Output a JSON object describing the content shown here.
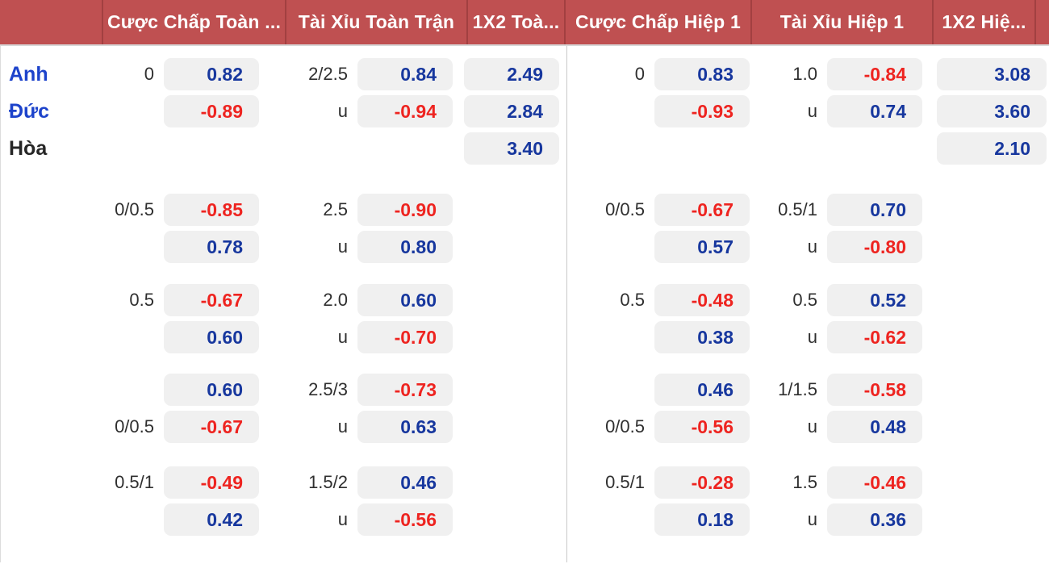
{
  "header": {
    "columns": [
      "",
      "Cược Chấp Toàn ...",
      "Tài Xỉu Toàn Trận",
      "1X2 Toà...",
      "Cược Chấp Hiệp 1",
      "Tài Xỉu Hiệp 1",
      "1X2 Hiệ..."
    ]
  },
  "colors": {
    "header_bg": "#bf5051",
    "header_divider": "#a24041",
    "pill_bg": "#f0f0f0",
    "odds_positive_blue": "#17379e",
    "odds_negative_red": "#ee2420",
    "team_blue": "#1d43cb",
    "team_dark": "#262626"
  },
  "teams": [
    {
      "label": "Anh",
      "style": "blue"
    },
    {
      "label": "Đức",
      "style": "blue"
    },
    {
      "label": "Hòa",
      "style": "dark"
    }
  ],
  "halves": [
    {
      "name": "full-match",
      "blocks": [
        {
          "rows": [
            {
              "hcp": "0",
              "hcp_odds": "0.82",
              "ou": "2/2.5",
              "ou_odds": "0.84",
              "x12": "2.49"
            },
            {
              "hcp": "",
              "hcp_odds": "-0.89",
              "ou": "u",
              "ou_odds": "-0.94",
              "x12": "2.84"
            },
            {
              "hcp": "",
              "hcp_odds": "",
              "ou": "",
              "ou_odds": "",
              "x12": "3.40"
            }
          ]
        },
        {
          "rows": [
            {
              "hcp": "0/0.5",
              "hcp_odds": "-0.85",
              "ou": "2.5",
              "ou_odds": "-0.90",
              "x12": ""
            },
            {
              "hcp": "",
              "hcp_odds": "0.78",
              "ou": "u",
              "ou_odds": "0.80",
              "x12": ""
            }
          ]
        },
        {
          "rows": [
            {
              "hcp": "0.5",
              "hcp_odds": "-0.67",
              "ou": "2.0",
              "ou_odds": "0.60",
              "x12": ""
            },
            {
              "hcp": "",
              "hcp_odds": "0.60",
              "ou": "u",
              "ou_odds": "-0.70",
              "x12": ""
            }
          ]
        },
        {
          "rows": [
            {
              "hcp": "",
              "hcp_odds": "0.60",
              "ou": "2.5/3",
              "ou_odds": "-0.73",
              "x12": ""
            },
            {
              "hcp": "0/0.5",
              "hcp_odds": "-0.67",
              "ou": "u",
              "ou_odds": "0.63",
              "x12": ""
            }
          ]
        },
        {
          "rows": [
            {
              "hcp": "0.5/1",
              "hcp_odds": "-0.49",
              "ou": "1.5/2",
              "ou_odds": "0.46",
              "x12": ""
            },
            {
              "hcp": "",
              "hcp_odds": "0.42",
              "ou": "u",
              "ou_odds": "-0.56",
              "x12": ""
            }
          ]
        }
      ]
    },
    {
      "name": "first-half",
      "blocks": [
        {
          "rows": [
            {
              "hcp": "0",
              "hcp_odds": "0.83",
              "ou": "1.0",
              "ou_odds": "-0.84",
              "x12": "3.08"
            },
            {
              "hcp": "",
              "hcp_odds": "-0.93",
              "ou": "u",
              "ou_odds": "0.74",
              "x12": "3.60"
            },
            {
              "hcp": "",
              "hcp_odds": "",
              "ou": "",
              "ou_odds": "",
              "x12": "2.10"
            }
          ]
        },
        {
          "rows": [
            {
              "hcp": "0/0.5",
              "hcp_odds": "-0.67",
              "ou": "0.5/1",
              "ou_odds": "0.70",
              "x12": ""
            },
            {
              "hcp": "",
              "hcp_odds": "0.57",
              "ou": "u",
              "ou_odds": "-0.80",
              "x12": ""
            }
          ]
        },
        {
          "rows": [
            {
              "hcp": "0.5",
              "hcp_odds": "-0.48",
              "ou": "0.5",
              "ou_odds": "0.52",
              "x12": ""
            },
            {
              "hcp": "",
              "hcp_odds": "0.38",
              "ou": "u",
              "ou_odds": "-0.62",
              "x12": ""
            }
          ]
        },
        {
          "rows": [
            {
              "hcp": "",
              "hcp_odds": "0.46",
              "ou": "1/1.5",
              "ou_odds": "-0.58",
              "x12": ""
            },
            {
              "hcp": "0/0.5",
              "hcp_odds": "-0.56",
              "ou": "u",
              "ou_odds": "0.48",
              "x12": ""
            }
          ]
        },
        {
          "rows": [
            {
              "hcp": "0.5/1",
              "hcp_odds": "-0.28",
              "ou": "1.5",
              "ou_odds": "-0.46",
              "x12": ""
            },
            {
              "hcp": "",
              "hcp_odds": "0.18",
              "ou": "u",
              "ou_odds": "0.36",
              "x12": ""
            }
          ]
        }
      ]
    }
  ]
}
